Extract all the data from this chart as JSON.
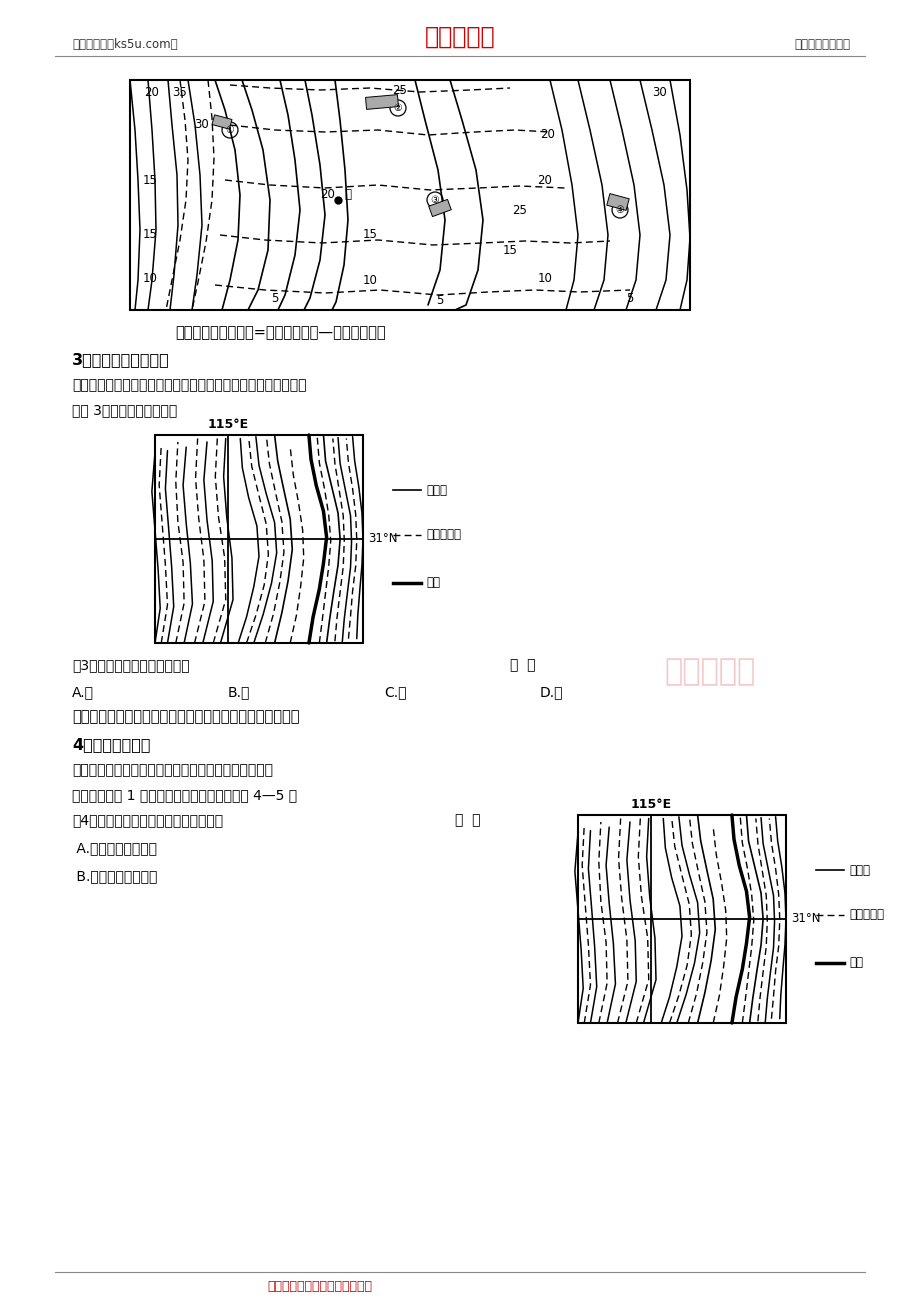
{
  "page_bg": "#ffffff",
  "header_left": "高考资源网（ks5u.com）",
  "header_center": "高考资源网",
  "header_right": "您身边的高考专家",
  "header_center_color": "#cc0000",
  "summary1": "小结：潜水埋藏深度=地面海拔高度—潜水海拔高度",
  "section3_title": "3、等潜水位线疏密：",
  "section3_text": "等潜水位线稀疏，潜水流速慢；等潜水位线密集，潜水流速快。",
  "app3_label": "应用 3：读疏密，判断流速",
  "map1_115E": "115°E",
  "map1_31N": "31°N",
  "legend_contour": "等高线",
  "legend_water": "等潜水位线",
  "legend_river": "河流",
  "question3": "（3）图中地下水流速最大处是",
  "q3_bracket": "（  ）",
  "q3_A": "A.甲",
  "q3_B": "B.乙",
  "q3_C": "C.丙",
  "q3_D": "D.丁",
  "summary2": "小结：潜水位线间距大的地方流速慢，间距小的地方流速快",
  "section4_title": "4、走向和弯曲：",
  "section4_text1": "看走向和弯曲，判断潜水流向及潜水与河流的补给关系",
  "section4_text2": "上图为某地区 1 月份等潜水位线图，读图回答 4—5 题",
  "q4_text": "（4）图中河流与地下水的补给关系是：",
  "q4_bracket": "（  ）",
  "q4_A": " A.河流水补给地下水",
  "q4_B": " B.地下水补给河流水",
  "map2_115E": "115°E",
  "map2_31N": "31°N",
  "footer": "高考资源网版权所有，侵权必究",
  "footer_color": "#cc0000",
  "watermark": "高考资源网",
  "watermark_color": "#dd4444"
}
